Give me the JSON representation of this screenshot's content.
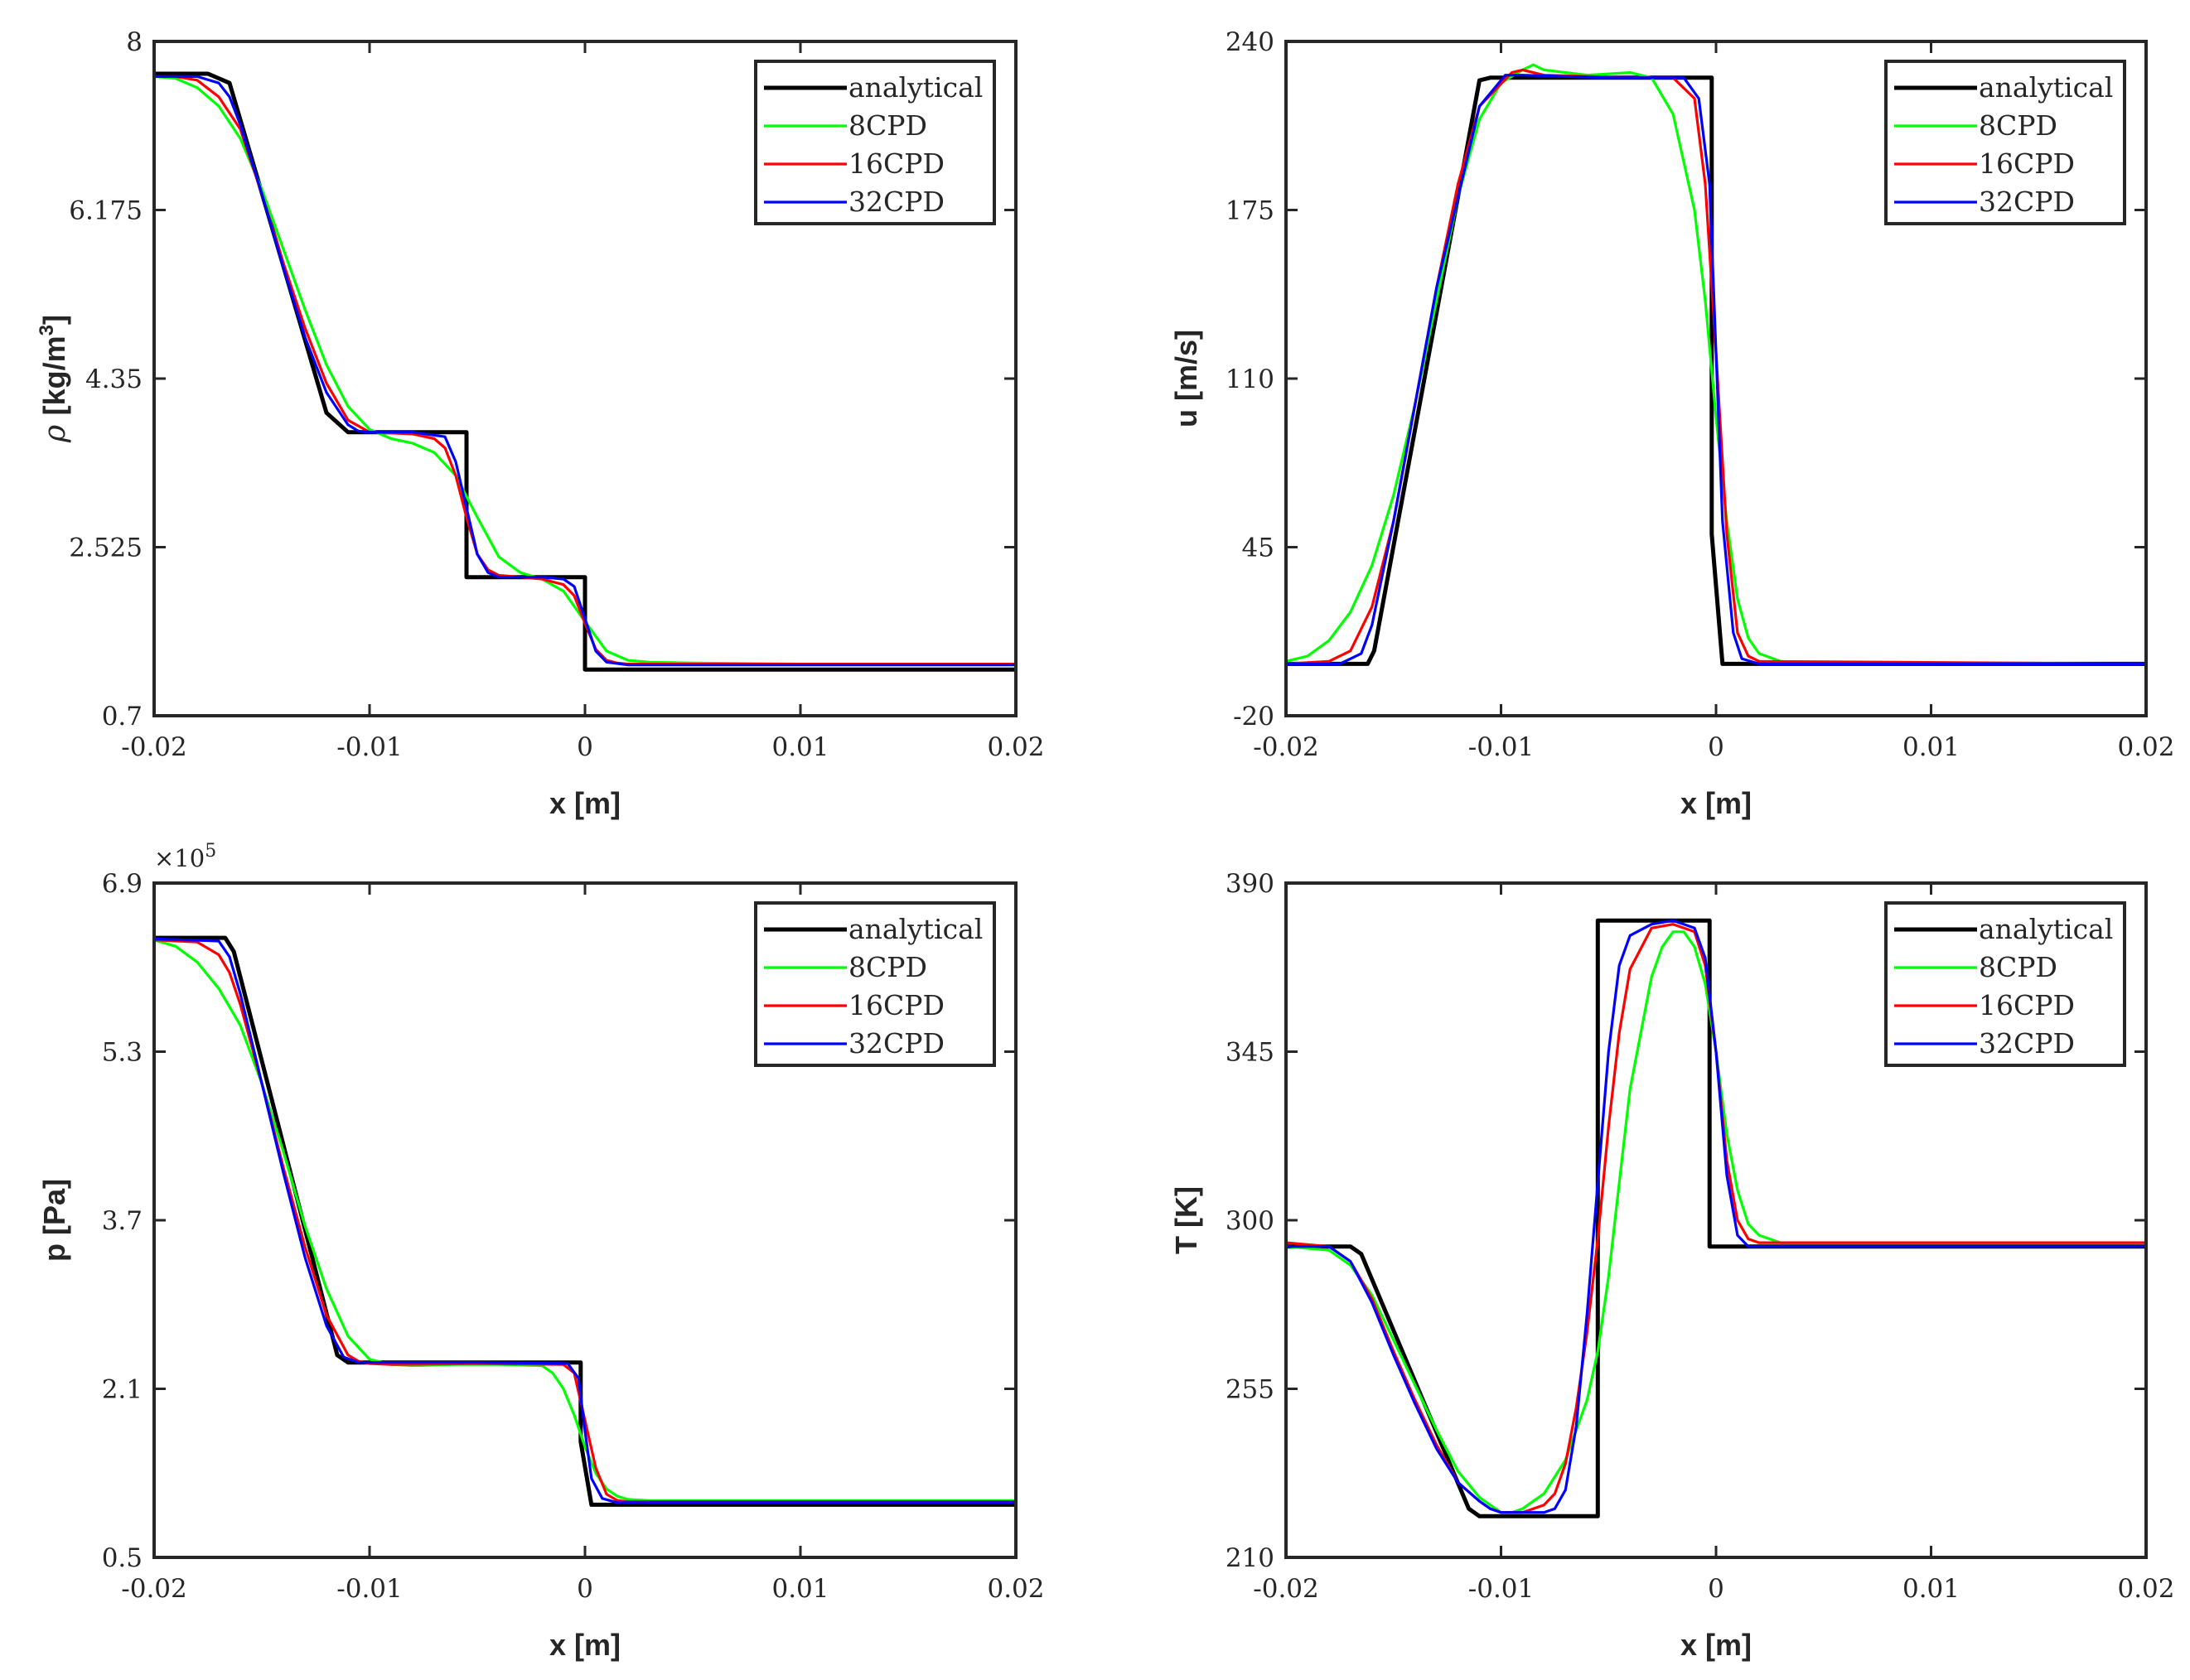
{
  "chart_data": [
    {
      "type": "line",
      "id": "density",
      "ylabel": "ρ [kg/m³]",
      "ylabel_parts": {
        "symbol": "ρ",
        "unit": "[kg/m",
        "sup": "3",
        "close": "]"
      },
      "xlabel": "x [m]",
      "xlim": [
        -0.02,
        0.02
      ],
      "ylim": [
        0.7,
        8
      ],
      "xticks": [
        -0.02,
        -0.01,
        0,
        0.01,
        0.02
      ],
      "xtick_labels": [
        "-0.02",
        "-0.01",
        "0",
        "0.01",
        "0.02"
      ],
      "yticks": [
        0.7,
        2.525,
        4.35,
        6.175,
        8
      ],
      "ytick_labels": [
        "0.7",
        "2.525",
        "4.35",
        "6.175",
        "8"
      ],
      "exponent": null,
      "legend": [
        "analytical",
        "8CPD",
        "16CPD",
        "32CPD"
      ],
      "legend_position": "top-right",
      "series": [
        {
          "name": "analytical",
          "x": [
            -0.02,
            -0.0175,
            -0.0165,
            -0.012,
            -0.011,
            -0.0055,
            -0.0055,
            0.0,
            0.0,
            0.02
          ],
          "y": [
            7.65,
            7.65,
            7.55,
            3.98,
            3.77,
            3.77,
            2.2,
            2.2,
            1.2,
            1.2
          ]
        },
        {
          "name": "8CPD",
          "x": [
            -0.02,
            -0.019,
            -0.018,
            -0.017,
            -0.016,
            -0.015,
            -0.014,
            -0.013,
            -0.012,
            -0.011,
            -0.01,
            -0.009,
            -0.008,
            -0.007,
            -0.006,
            -0.005,
            -0.004,
            -0.003,
            -0.002,
            -0.001,
            0.0,
            0.001,
            0.002,
            0.003,
            0.005,
            0.01,
            0.02
          ],
          "y": [
            7.62,
            7.6,
            7.5,
            7.3,
            6.95,
            6.4,
            5.75,
            5.1,
            4.5,
            4.05,
            3.8,
            3.7,
            3.65,
            3.55,
            3.3,
            2.85,
            2.42,
            2.25,
            2.18,
            2.05,
            1.72,
            1.4,
            1.3,
            1.28,
            1.27,
            1.26,
            1.26
          ]
        },
        {
          "name": "16CPD",
          "x": [
            -0.02,
            -0.019,
            -0.018,
            -0.017,
            -0.016,
            -0.015,
            -0.014,
            -0.013,
            -0.012,
            -0.011,
            -0.01,
            -0.009,
            -0.008,
            -0.007,
            -0.0065,
            -0.006,
            -0.0055,
            -0.005,
            -0.0045,
            -0.004,
            -0.003,
            -0.002,
            -0.001,
            -0.0005,
            0.0,
            0.0005,
            0.001,
            0.0015,
            0.002,
            0.005,
            0.02
          ],
          "y": [
            7.62,
            7.62,
            7.58,
            7.4,
            7.05,
            6.35,
            5.6,
            4.9,
            4.3,
            3.9,
            3.77,
            3.76,
            3.75,
            3.7,
            3.6,
            3.3,
            2.85,
            2.45,
            2.28,
            2.22,
            2.2,
            2.18,
            2.12,
            2.0,
            1.7,
            1.42,
            1.3,
            1.27,
            1.26,
            1.26,
            1.26
          ]
        },
        {
          "name": "32CPD",
          "x": [
            -0.02,
            -0.018,
            -0.017,
            -0.0165,
            -0.016,
            -0.015,
            -0.014,
            -0.013,
            -0.012,
            -0.011,
            -0.0105,
            -0.01,
            -0.008,
            -0.0065,
            -0.006,
            -0.0055,
            -0.005,
            -0.0045,
            -0.004,
            -0.002,
            -0.001,
            -0.0005,
            0.0,
            0.0005,
            0.001,
            0.002,
            0.02
          ],
          "y": [
            7.62,
            7.62,
            7.55,
            7.4,
            7.1,
            6.35,
            5.55,
            4.8,
            4.2,
            3.85,
            3.78,
            3.77,
            3.77,
            3.72,
            3.45,
            2.95,
            2.45,
            2.25,
            2.2,
            2.2,
            2.18,
            2.1,
            1.75,
            1.4,
            1.28,
            1.25,
            1.25
          ]
        }
      ]
    },
    {
      "type": "line",
      "id": "velocity",
      "ylabel": "u [m/s]",
      "xlabel": "x [m]",
      "xlim": [
        -0.02,
        0.02
      ],
      "ylim": [
        -20,
        240
      ],
      "xticks": [
        -0.02,
        -0.01,
        0,
        0.01,
        0.02
      ],
      "xtick_labels": [
        "-0.02",
        "-0.01",
        "0",
        "0.01",
        "0.02"
      ],
      "yticks": [
        -20,
        45,
        110,
        175,
        240
      ],
      "ytick_labels": [
        "-20",
        "45",
        "110",
        "175",
        "240"
      ],
      "exponent": null,
      "legend": [
        "analytical",
        "8CPD",
        "16CPD",
        "32CPD"
      ],
      "legend_position": "top-right",
      "series": [
        {
          "name": "analytical",
          "x": [
            -0.02,
            -0.0162,
            -0.0159,
            -0.011,
            -0.0105,
            -0.0002,
            -0.0002,
            0.0003,
            0.02
          ],
          "y": [
            0,
            0,
            5,
            225,
            226,
            226,
            50,
            0,
            0
          ]
        },
        {
          "name": "8CPD",
          "x": [
            -0.02,
            -0.019,
            -0.018,
            -0.017,
            -0.016,
            -0.015,
            -0.014,
            -0.013,
            -0.012,
            -0.011,
            -0.01,
            -0.009,
            -0.0085,
            -0.008,
            -0.006,
            -0.004,
            -0.003,
            -0.002,
            -0.001,
            -0.0005,
            0.0,
            0.0005,
            0.001,
            0.0015,
            0.002,
            0.003,
            0.005,
            0.02
          ],
          "y": [
            1,
            3,
            9,
            20,
            38,
            65,
            100,
            140,
            180,
            210,
            224,
            229,
            231,
            229,
            227,
            228,
            226,
            212,
            175,
            140,
            95,
            55,
            25,
            10,
            4,
            1,
            0,
            0
          ]
        },
        {
          "name": "16CPD",
          "x": [
            -0.02,
            -0.018,
            -0.017,
            -0.016,
            -0.015,
            -0.014,
            -0.013,
            -0.012,
            -0.011,
            -0.0095,
            -0.009,
            -0.008,
            -0.004,
            -0.002,
            -0.001,
            -0.0005,
            0.0,
            0.0005,
            0.001,
            0.0015,
            0.002,
            0.02
          ],
          "y": [
            0,
            1,
            5,
            22,
            55,
            100,
            145,
            185,
            215,
            228,
            229,
            227,
            226,
            226,
            218,
            185,
            120,
            50,
            12,
            3,
            1,
            0
          ]
        },
        {
          "name": "32CPD",
          "x": [
            -0.02,
            -0.0175,
            -0.0165,
            -0.016,
            -0.015,
            -0.013,
            -0.011,
            -0.0098,
            -0.009,
            -0.005,
            -0.0015,
            -0.0008,
            -0.0003,
            0.0,
            0.0003,
            0.0008,
            0.0012,
            0.002,
            0.02
          ],
          "y": [
            0,
            0,
            4,
            15,
            55,
            145,
            215,
            227,
            227,
            226,
            226,
            218,
            185,
            120,
            55,
            12,
            2,
            0,
            0
          ]
        }
      ]
    },
    {
      "type": "line",
      "id": "pressure",
      "ylabel": "p [Pa]",
      "xlabel": "x [m]",
      "xlim": [
        -0.02,
        0.02
      ],
      "ylim": [
        0.5,
        6.9
      ],
      "xticks": [
        -0.02,
        -0.01,
        0,
        0.01,
        0.02
      ],
      "xtick_labels": [
        "-0.02",
        "-0.01",
        "0",
        "0.01",
        "0.02"
      ],
      "yticks": [
        0.5,
        2.1,
        3.7,
        5.3,
        6.9
      ],
      "ytick_labels": [
        "0.5",
        "2.1",
        "3.7",
        "5.3",
        "6.9"
      ],
      "exponent": {
        "base": "×10",
        "power": "5"
      },
      "legend": [
        "analytical",
        "8CPD",
        "16CPD",
        "32CPD"
      ],
      "legend_position": "top-right",
      "series": [
        {
          "name": "analytical",
          "x": [
            -0.02,
            -0.0167,
            -0.0163,
            -0.0115,
            -0.011,
            -0.0002,
            -0.0002,
            0.0003,
            0.02
          ],
          "y": [
            6.38,
            6.38,
            6.25,
            2.42,
            2.35,
            2.35,
            1.6,
            1.0,
            1.0
          ]
        },
        {
          "name": "8CPD",
          "x": [
            -0.02,
            -0.019,
            -0.018,
            -0.017,
            -0.016,
            -0.015,
            -0.014,
            -0.013,
            -0.012,
            -0.011,
            -0.01,
            -0.009,
            -0.008,
            -0.006,
            -0.004,
            -0.002,
            -0.0015,
            -0.001,
            -0.0005,
            0.0,
            0.0005,
            0.001,
            0.0015,
            0.002,
            0.003,
            0.02
          ],
          "y": [
            6.36,
            6.3,
            6.15,
            5.9,
            5.55,
            5.0,
            4.35,
            3.65,
            3.05,
            2.6,
            2.38,
            2.33,
            2.32,
            2.33,
            2.33,
            2.32,
            2.25,
            2.1,
            1.85,
            1.55,
            1.3,
            1.15,
            1.08,
            1.05,
            1.04,
            1.04
          ]
        },
        {
          "name": "16CPD",
          "x": [
            -0.02,
            -0.018,
            -0.017,
            -0.0165,
            -0.016,
            -0.015,
            -0.014,
            -0.013,
            -0.012,
            -0.011,
            -0.0105,
            -0.01,
            -0.009,
            -0.005,
            -0.001,
            -0.0005,
            0.0,
            0.0005,
            0.001,
            0.0015,
            0.002,
            0.02
          ],
          "y": [
            6.36,
            6.34,
            6.22,
            6.05,
            5.75,
            5.0,
            4.2,
            3.45,
            2.8,
            2.42,
            2.36,
            2.34,
            2.33,
            2.34,
            2.33,
            2.25,
            1.8,
            1.35,
            1.1,
            1.04,
            1.03,
            1.03
          ]
        },
        {
          "name": "32CPD",
          "x": [
            -0.02,
            -0.017,
            -0.0165,
            -0.016,
            -0.015,
            -0.014,
            -0.013,
            -0.012,
            -0.0112,
            -0.0105,
            -0.005,
            -0.0008,
            -0.0003,
            0.0,
            0.0003,
            0.0008,
            0.0015,
            0.02
          ],
          "y": [
            6.37,
            6.35,
            6.2,
            5.85,
            5.0,
            4.15,
            3.35,
            2.7,
            2.4,
            2.35,
            2.35,
            2.34,
            2.2,
            1.7,
            1.25,
            1.06,
            1.02,
            1.02
          ]
        }
      ]
    },
    {
      "type": "line",
      "id": "temperature",
      "ylabel": "T [K]",
      "xlabel": "x [m]",
      "xlim": [
        -0.02,
        0.02
      ],
      "ylim": [
        210,
        390
      ],
      "xticks": [
        -0.02,
        -0.01,
        0,
        0.01,
        0.02
      ],
      "xtick_labels": [
        "-0.02",
        "-0.01",
        "0",
        "0.01",
        "0.02"
      ],
      "yticks": [
        210,
        255,
        300,
        345,
        390
      ],
      "ytick_labels": [
        "210",
        "255",
        "300",
        "345",
        "390"
      ],
      "exponent": null,
      "legend": [
        "analytical",
        "8CPD",
        "16CPD",
        "32CPD"
      ],
      "legend_position": "top-right",
      "series": [
        {
          "name": "analytical",
          "x": [
            -0.02,
            -0.017,
            -0.0165,
            -0.0115,
            -0.011,
            -0.0055,
            -0.0055,
            -0.0003,
            -0.0003,
            0.02
          ],
          "y": [
            293,
            293,
            291,
            223,
            221,
            221,
            380,
            380,
            293,
            293
          ]
        },
        {
          "name": "8CPD",
          "x": [
            -0.02,
            -0.018,
            -0.017,
            -0.016,
            -0.015,
            -0.014,
            -0.013,
            -0.012,
            -0.011,
            -0.0105,
            -0.01,
            -0.0095,
            -0.009,
            -0.008,
            -0.007,
            -0.006,
            -0.0055,
            -0.005,
            -0.0045,
            -0.004,
            -0.003,
            -0.0025,
            -0.002,
            -0.0015,
            -0.001,
            -0.0005,
            0.0,
            0.0005,
            0.001,
            0.0015,
            0.002,
            0.003,
            0.005,
            0.02
          ],
          "y": [
            293,
            292,
            288,
            280,
            268,
            256,
            244,
            233,
            226,
            224,
            222,
            222,
            223,
            227,
            236,
            252,
            265,
            285,
            310,
            335,
            365,
            373,
            377,
            377,
            373,
            363,
            345,
            323,
            308,
            299,
            296,
            294,
            294,
            294
          ]
        },
        {
          "name": "16CPD",
          "x": [
            -0.02,
            -0.018,
            -0.017,
            -0.016,
            -0.015,
            -0.014,
            -0.013,
            -0.012,
            -0.011,
            -0.0105,
            -0.01,
            -0.009,
            -0.008,
            -0.0075,
            -0.007,
            -0.0065,
            -0.006,
            -0.0055,
            -0.005,
            -0.0045,
            -0.004,
            -0.003,
            -0.002,
            -0.001,
            -0.0005,
            0.0,
            0.0005,
            0.001,
            0.0015,
            0.002,
            0.02
          ],
          "y": [
            294,
            293,
            289,
            279,
            265,
            252,
            240,
            230,
            225,
            223,
            222,
            222,
            224,
            227,
            235,
            250,
            270,
            295,
            325,
            350,
            367,
            378,
            379,
            377,
            368,
            345,
            316,
            300,
            295,
            294,
            294
          ]
        },
        {
          "name": "32CPD",
          "x": [
            -0.02,
            -0.018,
            -0.017,
            -0.016,
            -0.015,
            -0.014,
            -0.013,
            -0.012,
            -0.011,
            -0.0105,
            -0.01,
            -0.009,
            -0.008,
            -0.0075,
            -0.007,
            -0.0065,
            -0.006,
            -0.0055,
            -0.005,
            -0.0045,
            -0.004,
            -0.003,
            -0.002,
            -0.001,
            -0.0005,
            0.0,
            0.0005,
            0.001,
            0.0015,
            0.02
          ],
          "y": [
            293,
            293,
            289,
            278,
            264,
            251,
            239,
            230,
            225,
            223,
            222,
            222,
            222,
            223,
            228,
            245,
            275,
            310,
            345,
            368,
            376,
            379,
            380,
            378,
            370,
            345,
            312,
            296,
            293,
            293
          ]
        }
      ]
    }
  ],
  "series_colors": {
    "analytical": "#000000",
    "8CPD": "#00ff00",
    "16CPD": "#ff0000",
    "32CPD": "#0000ff"
  }
}
